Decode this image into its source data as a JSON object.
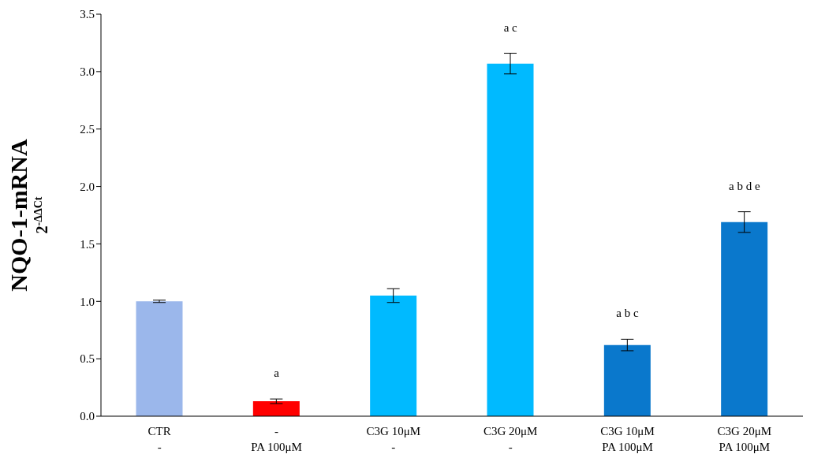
{
  "chart_data": {
    "type": "bar",
    "ylabel": "NQO-1-mRNA\n2$^{-ΔΔCt}$",
    "categories": [
      "CTR\n-",
      "-\nPA 100μM",
      "C3G 10μM\n-",
      "C3G 20μM\n-",
      "C3G 10μM\nPA 100μM",
      "C3G 20μM\nPA 100μM"
    ],
    "values": [
      1.0,
      0.13,
      1.05,
      3.07,
      0.62,
      1.69
    ],
    "errors": [
      0.01,
      0.02,
      0.06,
      0.09,
      0.05,
      0.09
    ],
    "colors": [
      "#9bb7eb",
      "#ff0000",
      "#00baff",
      "#00baff",
      "#0a78cc",
      "#0a78cc"
    ],
    "ylim": [
      0,
      3.5
    ],
    "yticks": [
      {
        "value": 0,
        "label": "0.0"
      },
      {
        "value": 0.5,
        "label": "0.5"
      },
      {
        "value": 1,
        "label": "1.0"
      },
      {
        "value": 1.5,
        "label": "1.5"
      },
      {
        "value": 2,
        "label": "2.0"
      },
      {
        "value": 2.5,
        "label": "2.5"
      },
      {
        "value": 3,
        "label": "3.0"
      },
      {
        "value": 3.5,
        "label": "3.5"
      }
    ],
    "grid": false,
    "legend": false,
    "value_labels": [
      null,
      "a",
      null,
      "a c",
      "a b c",
      "a b d e"
    ]
  }
}
